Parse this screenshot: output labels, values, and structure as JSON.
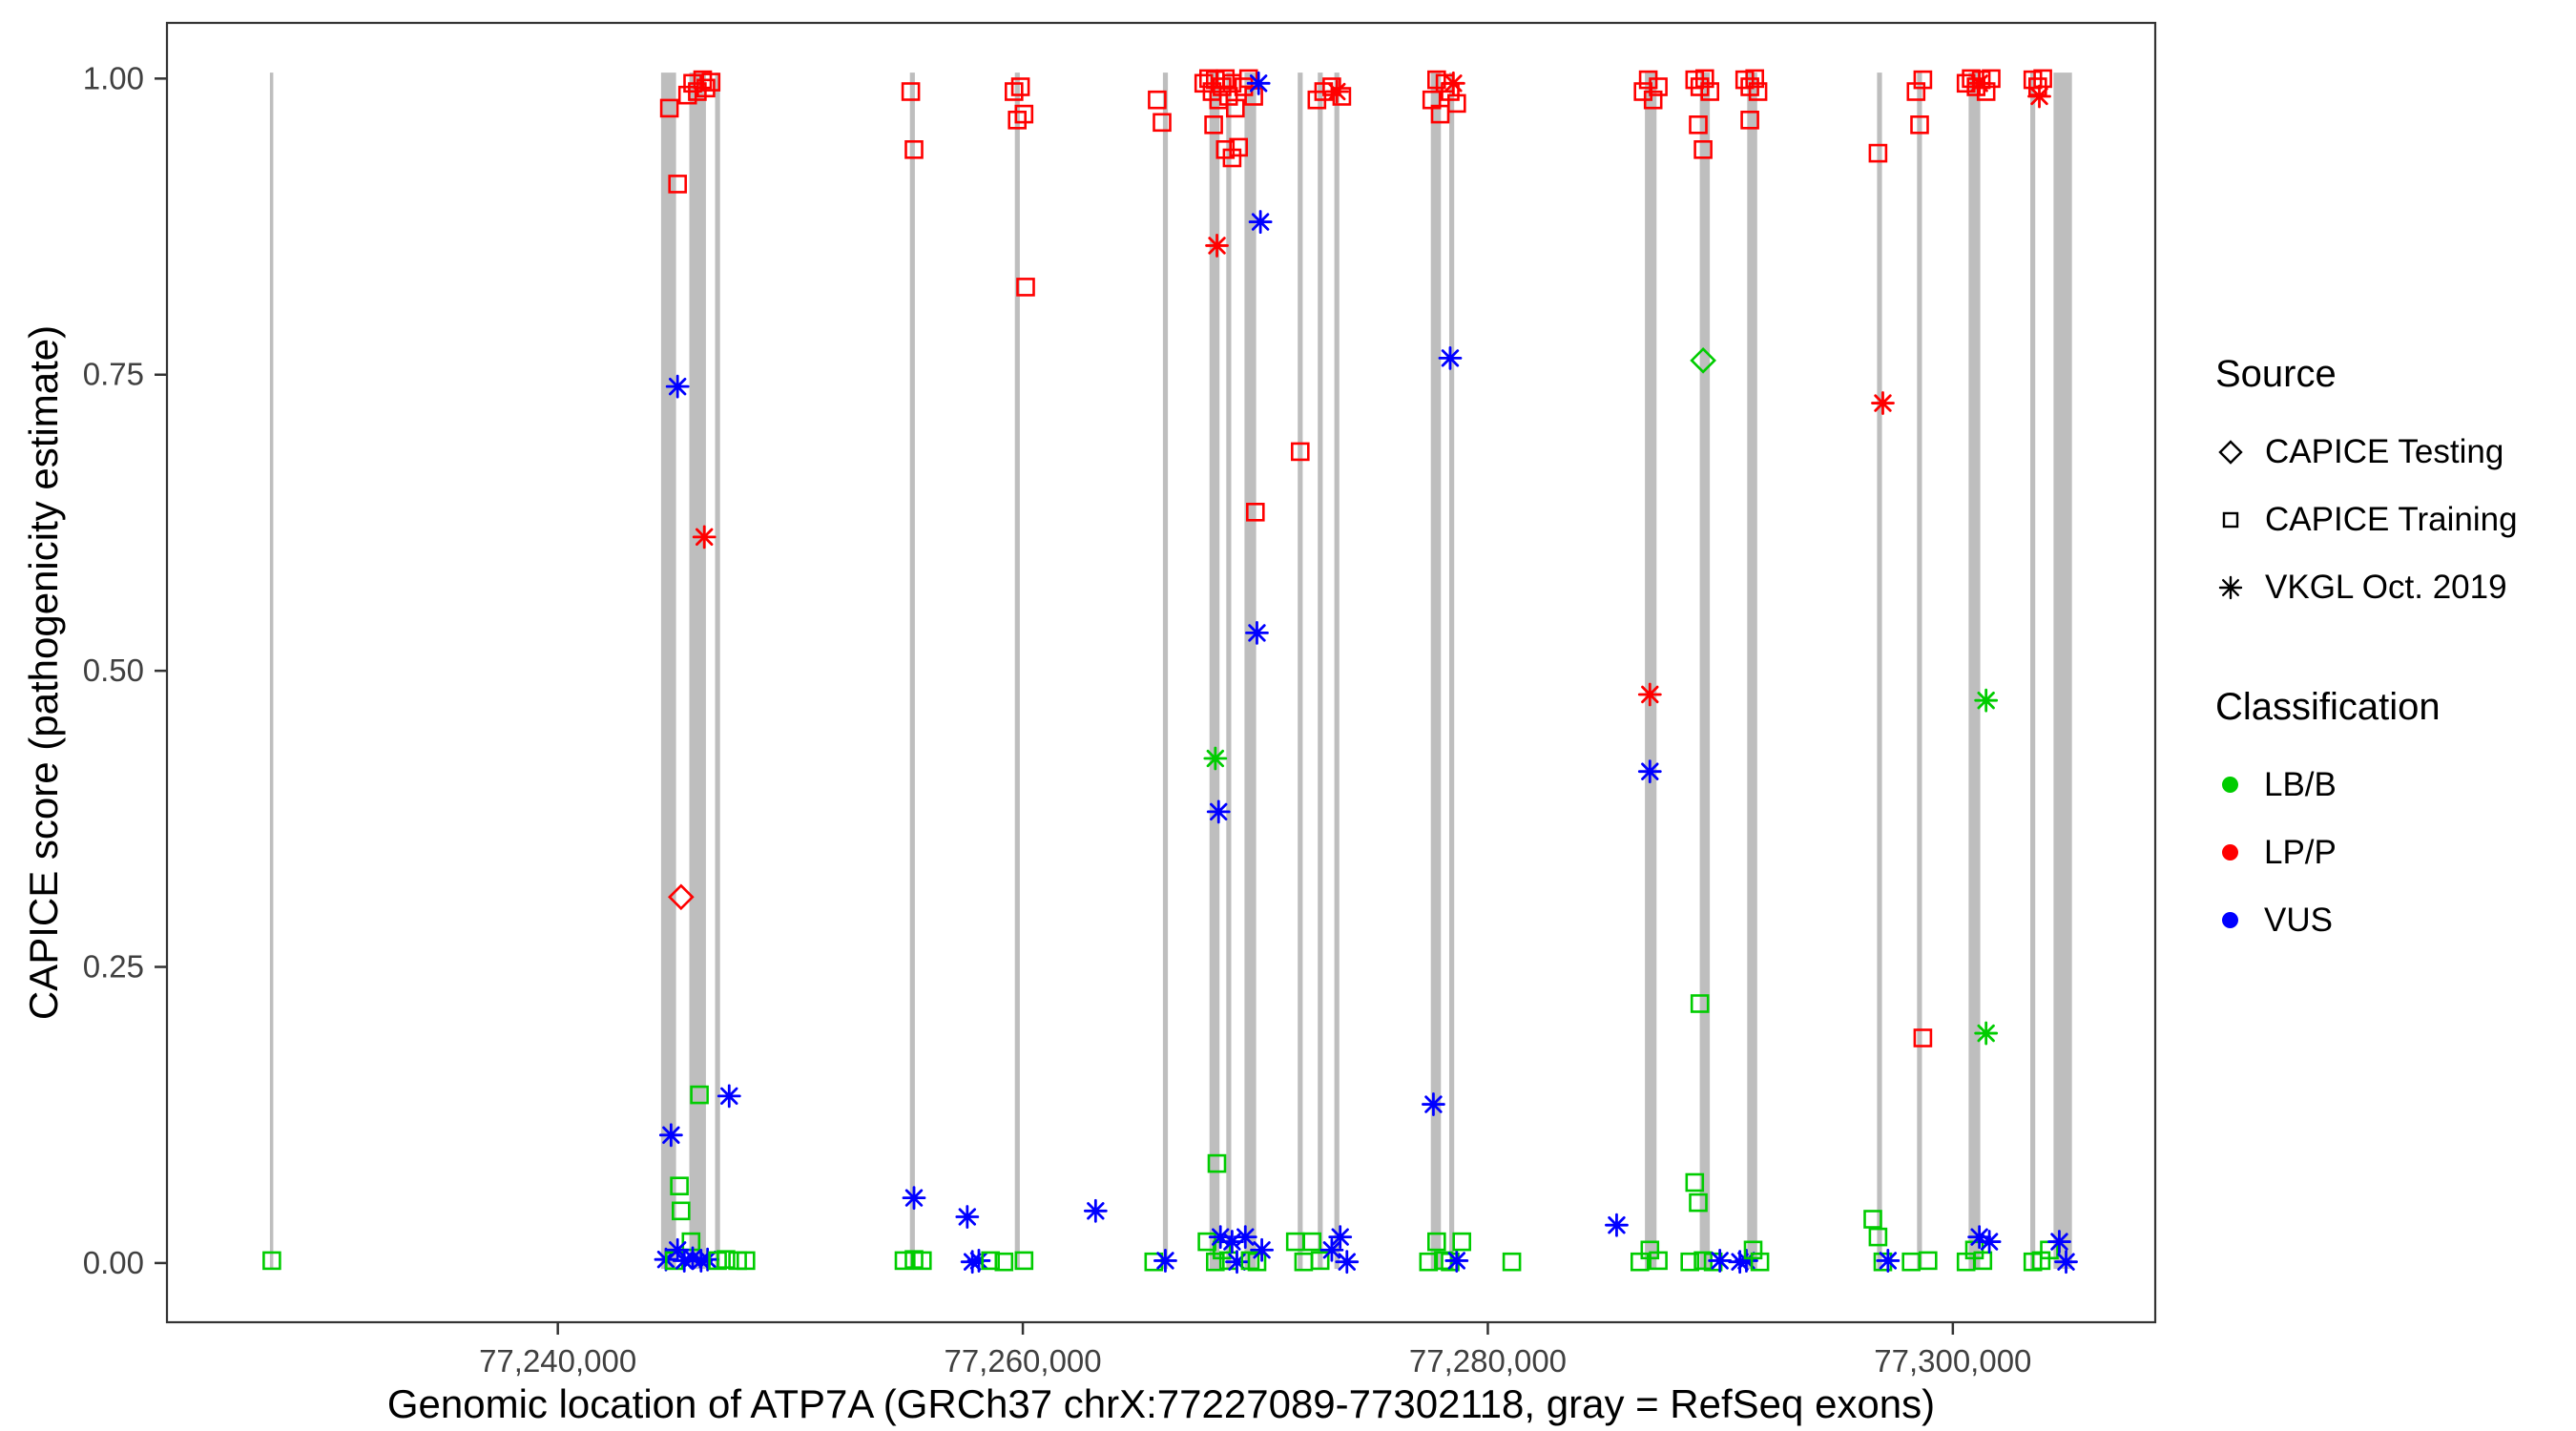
{
  "gene": {
    "name": "ATP7A",
    "assembly": "GRCh37",
    "chrom": "chrX",
    "start": 77227089,
    "end": 77302118
  },
  "legend": {
    "source": {
      "title": "Source",
      "items": [
        {
          "label": "CAPICE Testing",
          "shape": "diamond"
        },
        {
          "label": "CAPICE Training",
          "shape": "square"
        },
        {
          "label": "VKGL Oct. 2019",
          "shape": "asterisk"
        }
      ]
    },
    "classification": {
      "title": "Classification",
      "items": [
        {
          "label": "LB/B",
          "color": "#00cc00"
        },
        {
          "label": "LP/P",
          "color": "#ff0000"
        },
        {
          "label": "VUS",
          "color": "#0000ff"
        }
      ]
    }
  },
  "chart_data": {
    "type": "scatter",
    "title": "",
    "xlabel": "Genomic location of ATP7A (GRCh37 chrX:77227089-77302118, gray = RefSeq exons)",
    "ylabel": "CAPICE score (pathogenicity estimate)",
    "xlim": [
      77223189,
      77308706
    ],
    "ylim": [
      -0.05,
      1.047
    ],
    "x_ticks": [
      {
        "value": 77240000,
        "label": "77,240,000"
      },
      {
        "value": 77260000,
        "label": "77,260,000"
      },
      {
        "value": 77280000,
        "label": "77,280,000"
      },
      {
        "value": 77300000,
        "label": "77,300,000"
      }
    ],
    "y_ticks": [
      {
        "value": 0,
        "label": "0.00"
      },
      {
        "value": 0.25,
        "label": "0.25"
      },
      {
        "value": 0.5,
        "label": "0.50"
      },
      {
        "value": 0.75,
        "label": "0.75"
      },
      {
        "value": 1,
        "label": "1.00"
      }
    ],
    "grid": false,
    "legend_position": "right",
    "exon_color": "#bebebe",
    "class_colors": {
      "LB": "#00cc00",
      "LP": "#ff0000",
      "VUS": "#0000ff"
    },
    "shape_legend": {
      "di": "CAPICE Testing",
      "sq": "CAPICE Training",
      "as": "VKGL Oct. 2019"
    },
    "exons": [
      [
        77227615,
        77227760
      ],
      [
        77244440,
        77245085
      ],
      [
        77245655,
        77246370
      ],
      [
        77246765,
        77246980
      ],
      [
        77255145,
        77255360
      ],
      [
        77259655,
        77259870
      ],
      [
        77266025,
        77266240
      ],
      [
        77268030,
        77268460
      ],
      [
        77268750,
        77268965
      ],
      [
        77269535,
        77270035
      ],
      [
        77271825,
        77272040
      ],
      [
        77272685,
        77272900
      ],
      [
        77273400,
        77273615
      ],
      [
        77277550,
        77277985
      ],
      [
        77278340,
        77278555
      ],
      [
        77286755,
        77287255
      ],
      [
        77289115,
        77289545
      ],
      [
        77291155,
        77291585
      ],
      [
        77296740,
        77296955
      ],
      [
        77298460,
        77298675
      ],
      [
        77300680,
        77301180
      ],
      [
        77303330,
        77303545
      ],
      [
        77304330,
        77305120
      ]
    ],
    "points": [
      [
        77227700,
        0.002,
        "sq",
        "LB"
      ],
      [
        77244800,
        0.975,
        "sq",
        "LP"
      ],
      [
        77245150,
        0.911,
        "sq",
        "LP"
      ],
      [
        77245580,
        0.986,
        "sq",
        "LP"
      ],
      [
        77245800,
        0.996,
        "sq",
        "LP"
      ],
      [
        77246000,
        0.989,
        "sq",
        "LP"
      ],
      [
        77246230,
        0.999,
        "sq",
        "LP"
      ],
      [
        77246370,
        0.992,
        "sq",
        "LP"
      ],
      [
        77246590,
        0.997,
        "sq",
        "LP"
      ],
      [
        77245300,
        0.309,
        "di",
        "LP"
      ],
      [
        77246300,
        0.613,
        "as",
        "LP"
      ],
      [
        77245150,
        0.74,
        "as",
        "VUS"
      ],
      [
        77244870,
        0.108,
        "as",
        "VUS"
      ],
      [
        77247370,
        0.141,
        "as",
        "VUS"
      ],
      [
        77245230,
        0.065,
        "sq",
        "LB"
      ],
      [
        77245300,
        0.044,
        "sq",
        "LB"
      ],
      [
        77246090,
        0.142,
        "sq",
        "LB"
      ],
      [
        77245730,
        0.018,
        "sq",
        "LB"
      ],
      [
        77244650,
        0.003,
        "as",
        "VUS"
      ],
      [
        77245010,
        0.002,
        "sq",
        "LB"
      ],
      [
        77245150,
        0.011,
        "as",
        "VUS"
      ],
      [
        77245440,
        0.002,
        "as",
        "VUS"
      ],
      [
        77245800,
        0.004,
        "as",
        "VUS"
      ],
      [
        77246160,
        0.002,
        "as",
        "VUS"
      ],
      [
        77246440,
        0.003,
        "as",
        "VUS"
      ],
      [
        77246870,
        0.002,
        "sq",
        "LB"
      ],
      [
        77247230,
        0.003,
        "sq",
        "LB"
      ],
      [
        77247730,
        0.002,
        "sq",
        "LB"
      ],
      [
        77248090,
        0.002,
        "sq",
        "LB"
      ],
      [
        77255180,
        0.989,
        "sq",
        "LP"
      ],
      [
        77255320,
        0.94,
        "sq",
        "LP"
      ],
      [
        77255320,
        0.055,
        "as",
        "VUS"
      ],
      [
        77254890,
        0.002,
        "sq",
        "LB"
      ],
      [
        77255320,
        0.003,
        "sq",
        "LB"
      ],
      [
        77255680,
        0.002,
        "sq",
        "LB"
      ],
      [
        77257610,
        0.039,
        "as",
        "VUS"
      ],
      [
        77257830,
        0.001,
        "as",
        "VUS"
      ],
      [
        77258110,
        0.002,
        "as",
        "VUS"
      ],
      [
        77258610,
        0.002,
        "sq",
        "LB"
      ],
      [
        77259620,
        0.989,
        "sq",
        "LP"
      ],
      [
        77259900,
        0.993,
        "sq",
        "LP"
      ],
      [
        77260050,
        0.97,
        "sq",
        "LP"
      ],
      [
        77259760,
        0.965,
        "sq",
        "LP"
      ],
      [
        77260120,
        0.824,
        "sq",
        "LP"
      ],
      [
        77259190,
        0.001,
        "sq",
        "LB"
      ],
      [
        77260050,
        0.002,
        "sq",
        "LB"
      ],
      [
        77263130,
        0.044,
        "as",
        "VUS"
      ],
      [
        77265780,
        0.982,
        "sq",
        "LP"
      ],
      [
        77265990,
        0.963,
        "sq",
        "LP"
      ],
      [
        77265630,
        0.001,
        "sq",
        "LB"
      ],
      [
        77266130,
        0.002,
        "as",
        "VUS"
      ],
      [
        77267780,
        0.996,
        "sq",
        "LP"
      ],
      [
        77267990,
        1.0,
        "sq",
        "LP"
      ],
      [
        77268140,
        0.989,
        "sq",
        "LP"
      ],
      [
        77268280,
        0.999,
        "sq",
        "LP"
      ],
      [
        77268420,
        0.982,
        "sq",
        "LP"
      ],
      [
        77268570,
        0.993,
        "sq",
        "LP"
      ],
      [
        77268710,
        1.0,
        "sq",
        "LP"
      ],
      [
        77268850,
        0.985,
        "sq",
        "LP"
      ],
      [
        77269000,
        0.996,
        "sq",
        "LP"
      ],
      [
        77269140,
        0.975,
        "sq",
        "LP"
      ],
      [
        77268210,
        0.961,
        "sq",
        "LP"
      ],
      [
        77268710,
        0.94,
        "sq",
        "LP"
      ],
      [
        77269000,
        0.933,
        "sq",
        "LP"
      ],
      [
        77269280,
        0.942,
        "sq",
        "LP"
      ],
      [
        77269500,
        0.993,
        "sq",
        "LP"
      ],
      [
        77269710,
        1.0,
        "sq",
        "LP"
      ],
      [
        77269930,
        0.985,
        "sq",
        "LP"
      ],
      [
        77270140,
        0.996,
        "as",
        "VUS"
      ],
      [
        77268350,
        0.859,
        "as",
        "LP"
      ],
      [
        77270220,
        0.879,
        "as",
        "VUS"
      ],
      [
        77270000,
        0.634,
        "sq",
        "LP"
      ],
      [
        77270070,
        0.532,
        "as",
        "VUS"
      ],
      [
        77268280,
        0.426,
        "as",
        "LB"
      ],
      [
        77268420,
        0.381,
        "as",
        "VUS"
      ],
      [
        77268350,
        0.084,
        "sq",
        "LB"
      ],
      [
        77267920,
        0.018,
        "sq",
        "LB"
      ],
      [
        77268280,
        0.001,
        "sq",
        "LB"
      ],
      [
        77268570,
        0.011,
        "sq",
        "LB"
      ],
      [
        77268850,
        0.002,
        "sq",
        "LB"
      ],
      [
        77268500,
        0.022,
        "as",
        "VUS"
      ],
      [
        77269000,
        0.018,
        "as",
        "VUS"
      ],
      [
        77269210,
        0.001,
        "as",
        "VUS"
      ],
      [
        77269570,
        0.022,
        "as",
        "VUS"
      ],
      [
        77269780,
        0.002,
        "sq",
        "LB"
      ],
      [
        77270070,
        0.001,
        "sq",
        "LB"
      ],
      [
        77270280,
        0.011,
        "as",
        "VUS"
      ],
      [
        77271930,
        0.685,
        "sq",
        "LP"
      ],
      [
        77272650,
        0.982,
        "sq",
        "LP"
      ],
      [
        77272940,
        0.989,
        "sq",
        "LP"
      ],
      [
        77273290,
        0.993,
        "sq",
        "LP"
      ],
      [
        77273510,
        0.989,
        "as",
        "LP"
      ],
      [
        77273720,
        0.985,
        "sq",
        "LP"
      ],
      [
        77271720,
        0.018,
        "sq",
        "LB"
      ],
      [
        77272080,
        0.001,
        "sq",
        "LB"
      ],
      [
        77272440,
        0.018,
        "sq",
        "LB"
      ],
      [
        77272790,
        0.002,
        "sq",
        "LB"
      ],
      [
        77273290,
        0.011,
        "as",
        "VUS"
      ],
      [
        77273650,
        0.022,
        "as",
        "VUS"
      ],
      [
        77273940,
        0.001,
        "as",
        "VUS"
      ],
      [
        77277590,
        0.982,
        "sq",
        "LP"
      ],
      [
        77277800,
        0.999,
        "sq",
        "LP"
      ],
      [
        77277950,
        0.97,
        "sq",
        "LP"
      ],
      [
        77278160,
        0.996,
        "sq",
        "LP"
      ],
      [
        77278380,
        0.989,
        "sq",
        "LP"
      ],
      [
        77278520,
        0.996,
        "as",
        "LP"
      ],
      [
        77278660,
        0.979,
        "sq",
        "LP"
      ],
      [
        77278380,
        0.764,
        "as",
        "VUS"
      ],
      [
        77277660,
        0.134,
        "as",
        "VUS"
      ],
      [
        77277450,
        0.001,
        "sq",
        "LB"
      ],
      [
        77277800,
        0.018,
        "sq",
        "LB"
      ],
      [
        77278090,
        0.002,
        "sq",
        "LB"
      ],
      [
        77278380,
        0.001,
        "sq",
        "LB"
      ],
      [
        77278660,
        0.002,
        "as",
        "VUS"
      ],
      [
        77278880,
        0.018,
        "sq",
        "LB"
      ],
      [
        77281030,
        0.001,
        "sq",
        "LB"
      ],
      [
        77285540,
        0.032,
        "as",
        "VUS"
      ],
      [
        77286680,
        0.989,
        "sq",
        "LP"
      ],
      [
        77286900,
        0.999,
        "sq",
        "LP"
      ],
      [
        77287110,
        0.982,
        "sq",
        "LP"
      ],
      [
        77287330,
        0.993,
        "sq",
        "LP"
      ],
      [
        77286970,
        0.48,
        "as",
        "LP"
      ],
      [
        77286970,
        0.415,
        "as",
        "VUS"
      ],
      [
        77286540,
        0.001,
        "sq",
        "LB"
      ],
      [
        77286970,
        0.011,
        "sq",
        "LB"
      ],
      [
        77287330,
        0.002,
        "sq",
        "LB"
      ],
      [
        77288900,
        0.999,
        "sq",
        "LP"
      ],
      [
        77289120,
        0.993,
        "sq",
        "LP"
      ],
      [
        77289330,
        1.0,
        "sq",
        "LP"
      ],
      [
        77289550,
        0.989,
        "sq",
        "LP"
      ],
      [
        77289260,
        0.94,
        "sq",
        "LP"
      ],
      [
        77289050,
        0.961,
        "sq",
        "LP"
      ],
      [
        77289260,
        0.762,
        "di",
        "LB"
      ],
      [
        77289120,
        0.219,
        "sq",
        "LB"
      ],
      [
        77288900,
        0.068,
        "sq",
        "LB"
      ],
      [
        77289050,
        0.051,
        "sq",
        "LB"
      ],
      [
        77288690,
        0.001,
        "sq",
        "LB"
      ],
      [
        77289260,
        0.002,
        "sq",
        "LB"
      ],
      [
        77289690,
        0.001,
        "sq",
        "LB"
      ],
      [
        77289980,
        0.002,
        "as",
        "VUS"
      ],
      [
        77291050,
        0.999,
        "sq",
        "LP"
      ],
      [
        77291270,
        0.993,
        "sq",
        "LP"
      ],
      [
        77291480,
        1.0,
        "sq",
        "LP"
      ],
      [
        77291620,
        0.989,
        "sq",
        "LP"
      ],
      [
        77291270,
        0.965,
        "sq",
        "LP"
      ],
      [
        77290840,
        0.001,
        "as",
        "VUS"
      ],
      [
        77291120,
        0.002,
        "as",
        "VUS"
      ],
      [
        77291410,
        0.011,
        "sq",
        "LB"
      ],
      [
        77291700,
        0.001,
        "sq",
        "LB"
      ],
      [
        77296780,
        0.937,
        "sq",
        "LP"
      ],
      [
        77296990,
        0.726,
        "as",
        "LP"
      ],
      [
        77296560,
        0.037,
        "sq",
        "LB"
      ],
      [
        77296780,
        0.022,
        "sq",
        "LB"
      ],
      [
        77296990,
        0.001,
        "sq",
        "LB"
      ],
      [
        77297210,
        0.002,
        "as",
        "VUS"
      ],
      [
        77298420,
        0.989,
        "sq",
        "LP"
      ],
      [
        77298710,
        0.999,
        "sq",
        "LP"
      ],
      [
        77298570,
        0.961,
        "sq",
        "LP"
      ],
      [
        77298710,
        0.19,
        "sq",
        "LP"
      ],
      [
        77298210,
        0.001,
        "sq",
        "LB"
      ],
      [
        77298930,
        0.002,
        "sq",
        "LB"
      ],
      [
        77300570,
        0.996,
        "sq",
        "LP"
      ],
      [
        77300790,
        1.0,
        "sq",
        "LP"
      ],
      [
        77301000,
        0.993,
        "sq",
        "LP"
      ],
      [
        77301220,
        0.999,
        "sq",
        "LP"
      ],
      [
        77301430,
        0.989,
        "sq",
        "LP"
      ],
      [
        77301650,
        1.0,
        "sq",
        "LP"
      ],
      [
        77301140,
        0.996,
        "as",
        "LP"
      ],
      [
        77301430,
        0.475,
        "as",
        "LB"
      ],
      [
        77301430,
        0.194,
        "as",
        "LB"
      ],
      [
        77300570,
        0.001,
        "sq",
        "LB"
      ],
      [
        77300930,
        0.011,
        "sq",
        "LB"
      ],
      [
        77301290,
        0.002,
        "sq",
        "LB"
      ],
      [
        77301140,
        0.022,
        "as",
        "VUS"
      ],
      [
        77301570,
        0.018,
        "as",
        "VUS"
      ],
      [
        77303440,
        0.999,
        "sq",
        "LP"
      ],
      [
        77303650,
        0.993,
        "sq",
        "LP"
      ],
      [
        77303870,
        1.0,
        "sq",
        "LP"
      ],
      [
        77303720,
        0.985,
        "as",
        "LP"
      ],
      [
        77303440,
        0.001,
        "sq",
        "LB"
      ],
      [
        77303800,
        0.002,
        "sq",
        "LB"
      ],
      [
        77304150,
        0.011,
        "sq",
        "LB"
      ],
      [
        77304580,
        0.018,
        "as",
        "VUS"
      ],
      [
        77304870,
        0.001,
        "as",
        "VUS"
      ]
    ]
  }
}
